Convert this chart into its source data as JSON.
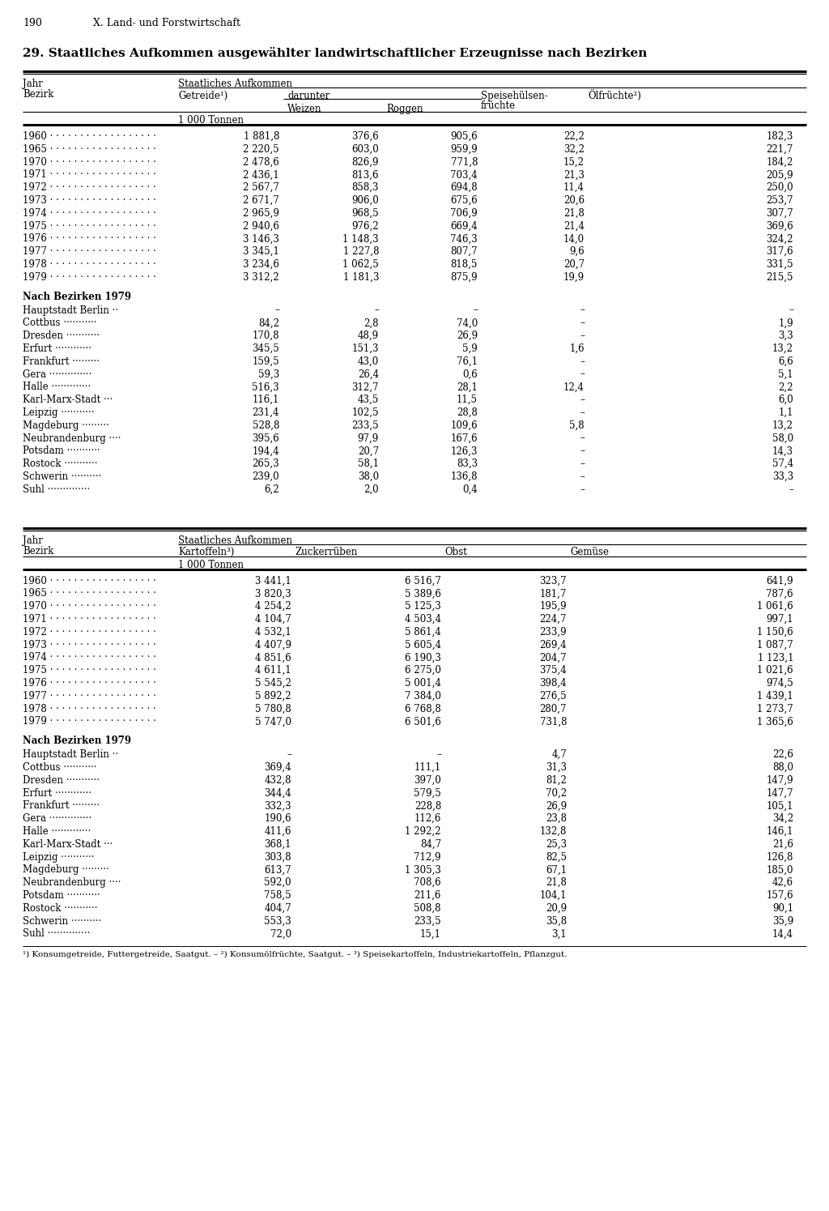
{
  "page_num": "190",
  "chapter": "X. Land- und Forstwirtschaft",
  "title": "29. Staatliches Aufkommen ausgewählter landwirtschaftlicher Erzeugnisse nach Bezirken",
  "table1": {
    "unit": "1 000 Tonnen",
    "years_data": [
      [
        "1960",
        "1 881,8",
        "376,6",
        "905,6",
        "22,2",
        "182,3"
      ],
      [
        "1965",
        "2 220,5",
        "603,0",
        "959,9",
        "32,2",
        "221,7"
      ],
      [
        "1970",
        "2 478,6",
        "826,9",
        "771,8",
        "15,2",
        "184,2"
      ],
      [
        "1971",
        "2 436,1",
        "813,6",
        "703,4",
        "21,3",
        "205,9"
      ],
      [
        "1972",
        "2 567,7",
        "858,3",
        "694,8",
        "11,4",
        "250,0"
      ],
      [
        "1973",
        "2 671,7",
        "906,0",
        "675,6",
        "20,6",
        "253,7"
      ],
      [
        "1974",
        "2 965,9",
        "968,5",
        "706,9",
        "21,8",
        "307,7"
      ],
      [
        "1975",
        "2 940,6",
        "976,2",
        "669,4",
        "21,4",
        "369,6"
      ],
      [
        "1976",
        "3 146,3",
        "1 148,3",
        "746,3",
        "14,0",
        "324,2"
      ],
      [
        "1977",
        "3 345,1",
        "1 227,8",
        "807,7",
        "9,6",
        "317,6"
      ],
      [
        "1978",
        "3 234,6",
        "1 062,5",
        "818,5",
        "20,7",
        "331,5"
      ],
      [
        "1979",
        "3 312,2",
        "1 181,3",
        "875,9",
        "19,9",
        "215,5"
      ]
    ],
    "bezirke_header": "Nach Bezirken 1979",
    "bezirke_data": [
      [
        "Hauptstadt Berlin",
        "–",
        "–",
        "–",
        "–",
        "–"
      ],
      [
        "Cottbus",
        "84,2",
        "2,8",
        "74,0",
        "–",
        "1,9"
      ],
      [
        "Dresden",
        "170,8",
        "48,9",
        "26,9",
        "–",
        "3,3"
      ],
      [
        "Erfurt",
        "345,5",
        "151,3",
        "5,9",
        "1,6",
        "13,2"
      ],
      [
        "Frankfurt",
        "159,5",
        "43,0",
        "76,1",
        "–",
        "6,6"
      ],
      [
        "Gera",
        "59,3",
        "26,4",
        "0,6",
        "–",
        "5,1"
      ],
      [
        "Halle",
        "516,3",
        "312,7",
        "28,1",
        "12,4",
        "2,2"
      ],
      [
        "Karl-Marx-Stadt",
        "116,1",
        "43,5",
        "11,5",
        "–",
        "6,0"
      ],
      [
        "Leipzig",
        "231,4",
        "102,5",
        "28,8",
        "–",
        "1,1"
      ],
      [
        "Magdeburg",
        "528,8",
        "233,5",
        "109,6",
        "5,8",
        "13,2"
      ],
      [
        "Neubrandenburg",
        "395,6",
        "97,9",
        "167,6",
        "–",
        "58,0"
      ],
      [
        "Potsdam",
        "194,4",
        "20,7",
        "126,3",
        "–",
        "14,3"
      ],
      [
        "Rostock",
        "265,3",
        "58,1",
        "83,3",
        "–",
        "57,4"
      ],
      [
        "Schwerin",
        "239,0",
        "38,0",
        "136,8",
        "–",
        "33,3"
      ],
      [
        "Suhl",
        "6,2",
        "2,0",
        "0,4",
        "–",
        "–"
      ]
    ]
  },
  "table2": {
    "unit": "1 000 Tonnen",
    "years_data": [
      [
        "1960",
        "3 441,1",
        "6 516,7",
        "323,7",
        "641,9"
      ],
      [
        "1965",
        "3 820,3",
        "5 389,6",
        "181,7",
        "787,6"
      ],
      [
        "1970",
        "4 254,2",
        "5 125,3",
        "195,9",
        "1 061,6"
      ],
      [
        "1971",
        "4 104,7",
        "4 503,4",
        "224,7",
        "997,1"
      ],
      [
        "1972",
        "4 532,1",
        "5 861,4",
        "233,9",
        "1 150,6"
      ],
      [
        "1973",
        "4 407,9",
        "5 605,4",
        "269,4",
        "1 087,7"
      ],
      [
        "1974",
        "4 851,6",
        "6 190,3",
        "204,7",
        "1 123,1"
      ],
      [
        "1975",
        "4 611,1",
        "6 275,0",
        "375,4",
        "1 021,6"
      ],
      [
        "1976",
        "5 545,2",
        "5 001,4",
        "398,4",
        "974,5"
      ],
      [
        "1977",
        "5 892,2",
        "7 384,0",
        "276,5",
        "1 439,1"
      ],
      [
        "1978",
        "5 780,8",
        "6 768,8",
        "280,7",
        "1 273,7"
      ],
      [
        "1979",
        "5 747,0",
        "6 501,6",
        "731,8",
        "1 365,6"
      ]
    ],
    "bezirke_header": "Nach Bezirken 1979",
    "bezirke_data": [
      [
        "Hauptstadt Berlin",
        "–",
        "–",
        "4,7",
        "22,6"
      ],
      [
        "Cottbus",
        "369,4",
        "111,1",
        "31,3",
        "88,0"
      ],
      [
        "Dresden",
        "432,8",
        "397,0",
        "81,2",
        "147,9"
      ],
      [
        "Erfurt",
        "344,4",
        "579,5",
        "70,2",
        "147,7"
      ],
      [
        "Frankfurt",
        "332,3",
        "228,8",
        "26,9",
        "105,1"
      ],
      [
        "Gera",
        "190,6",
        "112,6",
        "23,8",
        "34,2"
      ],
      [
        "Halle",
        "411,6",
        "1 292,2",
        "132,8",
        "146,1"
      ],
      [
        "Karl-Marx-Stadt",
        "368,1",
        "84,7",
        "25,3",
        "21,6"
      ],
      [
        "Leipzig",
        "303,8",
        "712,9",
        "82,5",
        "126,8"
      ],
      [
        "Magdeburg",
        "613,7",
        "1 305,3",
        "67,1",
        "185,0"
      ],
      [
        "Neubrandenburg",
        "592,0",
        "708,6",
        "21,8",
        "42,6"
      ],
      [
        "Potsdam",
        "758,5",
        "211,6",
        "104,1",
        "157,6"
      ],
      [
        "Rostock",
        "404,7",
        "508,8",
        "20,9",
        "90,1"
      ],
      [
        "Schwerin",
        "553,3",
        "233,5",
        "35,8",
        "35,9"
      ],
      [
        "Suhl",
        "72,0",
        "15,1",
        "3,1",
        "14,4"
      ]
    ]
  },
  "footnotes": "¹) Konsumgetreide, Futtergetreide, Saatgut. – ²) Konsumölfrüchte, Saatgut. – ³) Speisekartoffeln, Industriekartoffeln, Pflanzgut."
}
